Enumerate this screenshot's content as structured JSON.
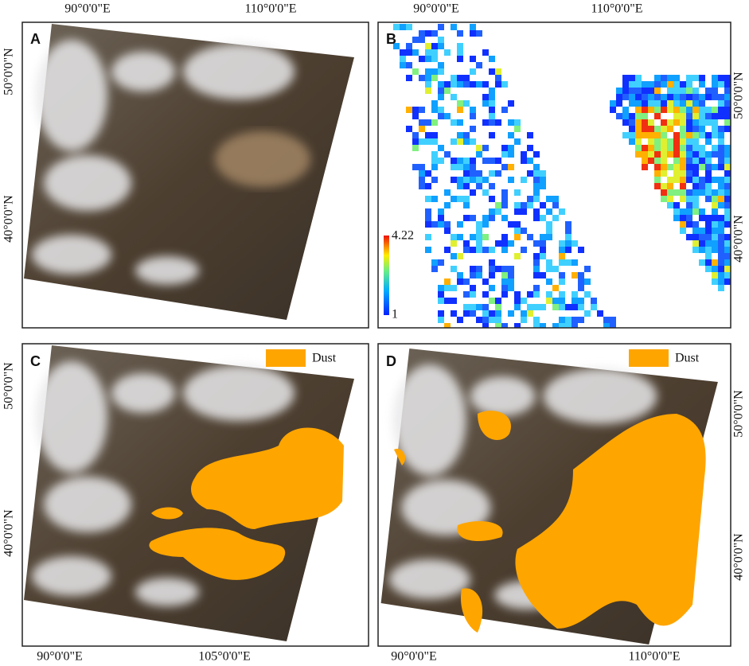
{
  "panels": [
    {
      "label": "A",
      "lon_labels": [
        "90°0'0\"E",
        "110°0'0\"E"
      ],
      "lat_labels": [
        "50°0'0\"N",
        "40°0'0\"N"
      ]
    },
    {
      "label": "B",
      "lon_labels": [
        "90°0'0\"E",
        "110°0'0\"E"
      ],
      "lat_labels": [
        "50°0'0\"N",
        "40°0'0\"N"
      ],
      "colorbar": {
        "max": "4.22",
        "min": "1"
      }
    },
    {
      "label": "C",
      "legend": "Dust",
      "lon_labels": [
        "90°0'0\"E",
        "105°0'0\"E"
      ],
      "lat_labels": [
        "50°0'0\"N",
        "40°0'0\"N"
      ]
    },
    {
      "label": "D",
      "legend": "Dust",
      "lon_labels": [
        "90°0'0\"E",
        "110°0'0\"E"
      ],
      "lat_labels": [
        "50°0'0\"N",
        "40°0'0\"N"
      ]
    }
  ]
}
